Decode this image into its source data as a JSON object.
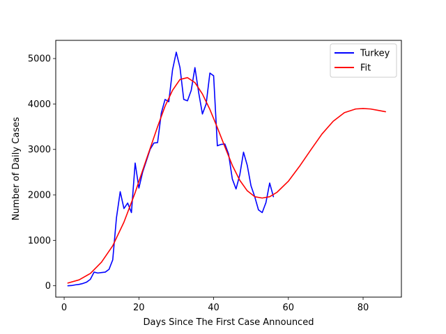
{
  "chart_data": {
    "type": "line",
    "xlabel": "Days Since The First Case Announced",
    "ylabel": "Number of Daily Cases",
    "xlim": [
      -2.25,
      90.25
    ],
    "ylim": [
      -250,
      5400
    ],
    "xticks": [
      0,
      20,
      40,
      60,
      80
    ],
    "yticks": [
      0,
      1000,
      2000,
      3000,
      4000,
      5000
    ],
    "grid": false,
    "legend_position": "top-right",
    "series": [
      {
        "name": "Turkey",
        "color": "#0000ff",
        "x": [
          1,
          2,
          3,
          4,
          5,
          6,
          7,
          8,
          9,
          10,
          11,
          12,
          13,
          14,
          15,
          16,
          17,
          18,
          19,
          20,
          21,
          22,
          23,
          24,
          25,
          26,
          27,
          28,
          29,
          30,
          31,
          32,
          33,
          34,
          35,
          36,
          37,
          38,
          39,
          40,
          41,
          42,
          43,
          44,
          45,
          46,
          47,
          48,
          49,
          50,
          51,
          52,
          53,
          54,
          55,
          56
        ],
        "y": [
          0,
          5,
          20,
          30,
          50,
          80,
          140,
          300,
          280,
          290,
          300,
          360,
          570,
          1500,
          2070,
          1700,
          1820,
          1610,
          2700,
          2150,
          2500,
          2750,
          3000,
          3140,
          3150,
          3800,
          4100,
          4050,
          4750,
          5140,
          4800,
          4100,
          4070,
          4300,
          4800,
          4250,
          3780,
          4000,
          4680,
          4620,
          3080,
          3110,
          3120,
          2900,
          2350,
          2130,
          2440,
          2940,
          2650,
          2200,
          1960,
          1670,
          1610,
          1830,
          2260,
          1960
        ]
      },
      {
        "name": "Fit",
        "color": "#ff0000",
        "x": [
          1,
          4,
          7,
          10,
          13,
          16,
          19,
          22,
          25,
          27,
          29,
          31,
          33,
          35,
          37,
          39,
          41,
          43,
          45,
          47,
          49,
          51,
          53,
          55,
          57,
          60,
          63,
          66,
          69,
          72,
          75,
          78,
          80,
          82,
          84,
          86
        ],
        "y": [
          60,
          130,
          270,
          520,
          880,
          1400,
          2050,
          2780,
          3500,
          3950,
          4300,
          4540,
          4580,
          4470,
          4220,
          3880,
          3480,
          3060,
          2650,
          2320,
          2090,
          1960,
          1930,
          1960,
          2060,
          2300,
          2630,
          2990,
          3340,
          3620,
          3810,
          3890,
          3900,
          3890,
          3860,
          3830
        ]
      }
    ]
  }
}
